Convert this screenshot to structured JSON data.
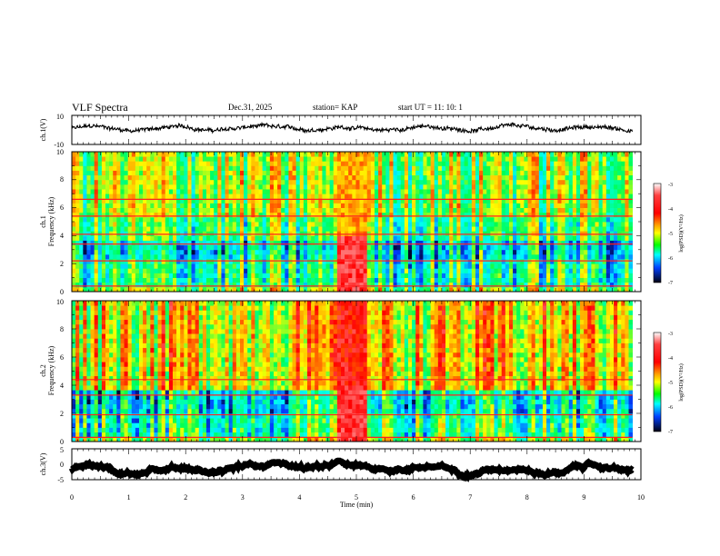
{
  "header": {
    "title": "VLF Spectra",
    "date": "Dec.31, 2025",
    "station": "station= KAP",
    "start_ut": "start  UT =   11: 10: 1"
  },
  "chart_data": [
    {
      "type": "line",
      "panel": "ch1-waveform",
      "ylabel": "ch.1(V)",
      "ylim": [
        -10,
        10
      ],
      "yticklabels": [
        "10",
        "-10"
      ],
      "xlim": [
        0,
        10
      ],
      "data_end_min": 9.85,
      "series": [
        {
          "name": "ch.1",
          "approx_level_v": 1,
          "approx_range_v": [
            -1,
            6
          ]
        }
      ]
    },
    {
      "type": "heatmap",
      "panel": "ch1-spectrogram",
      "channel_label": "ch.1",
      "ylabel": "Frequency  (kHz)",
      "ylim": [
        0,
        10
      ],
      "yticklabels": [
        "0",
        "2",
        "4",
        "6",
        "8",
        "10"
      ],
      "xlim": [
        0,
        10
      ],
      "data_end_min": 9.85,
      "burst_interval_min": [
        4.6,
        5.15
      ],
      "colorbar": {
        "label": "log(PSD)(V²/Hz)",
        "range": [
          -7,
          -3
        ],
        "ticks": [
          "-3",
          "-4",
          "-5",
          "-6",
          "-7"
        ]
      }
    },
    {
      "type": "heatmap",
      "panel": "ch2-spectrogram",
      "channel_label": "ch.2",
      "ylabel": "Frequency  (kHz)",
      "ylim": [
        0,
        10
      ],
      "yticklabels": [
        "0",
        "2",
        "4",
        "6",
        "8",
        "10"
      ],
      "xlim": [
        0,
        10
      ],
      "data_end_min": 9.85,
      "burst_interval_min": [
        4.6,
        5.15
      ],
      "colorbar": {
        "label": "log(PSD)(V²/Hz)",
        "range": [
          -7,
          -3
        ],
        "ticks": [
          "-3",
          "-4",
          "-5",
          "-6",
          "-7"
        ]
      }
    },
    {
      "type": "line",
      "panel": "ch3-waveform",
      "ylabel": "ch.3(V)",
      "ylim": [
        -5,
        5
      ],
      "yticklabels": [
        "5",
        "0",
        "-5"
      ],
      "xlim": [
        0,
        10
      ],
      "data_end_min": 9.85,
      "series": [
        {
          "name": "ch.3",
          "approx_level_v": -1.5,
          "approx_range_v": [
            -2.2,
            -0.8
          ]
        }
      ]
    }
  ],
  "xaxis": {
    "label": "Time  (min)",
    "ticks": [
      "0",
      "1",
      "2",
      "3",
      "4",
      "5",
      "6",
      "7",
      "8",
      "9",
      "10"
    ]
  },
  "colors": {
    "trace": "#000000",
    "frame": "#000000",
    "background": "#ffffff"
  }
}
